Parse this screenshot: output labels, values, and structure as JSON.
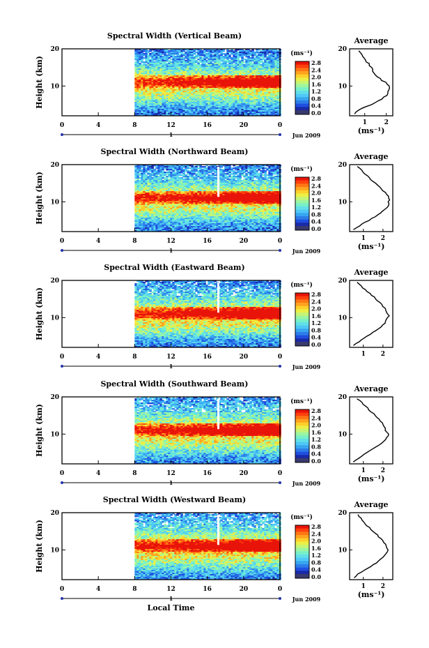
{
  "figure": {
    "x_axis_title": "Local Time",
    "date_label": "Jun 2009",
    "day_marker": "1",
    "unit_label": "(ms⁻¹)",
    "average_title": "Average"
  },
  "colorbar": {
    "ticks": [
      "2.8",
      "2.4",
      "2.0",
      "1.6",
      "1.2",
      "0.8",
      "0.4",
      "0.0"
    ],
    "colors": [
      "#3a3a6e",
      "#1a2aa8",
      "#1f4fe0",
      "#2d7de8",
      "#38a6f0",
      "#4fc8f5",
      "#62e0e8",
      "#78f0c8",
      "#9cf5a0",
      "#c6f574",
      "#ecef45",
      "#ffd02a",
      "#ffa31f",
      "#ff7615",
      "#ff400d",
      "#e81409"
    ]
  },
  "chart_data": [
    {
      "type": "heatmap",
      "title": "Spectral Width (Vertical Beam)",
      "ylabel": "Height (km)",
      "xlabel": "",
      "x_ticks": [
        "0",
        "4",
        "8",
        "12",
        "16",
        "20",
        "0"
      ],
      "y_ticks": [
        "20",
        "10"
      ],
      "xlim": [
        0,
        24
      ],
      "ylim": [
        2,
        20
      ],
      "data_start_hour": 8,
      "value_range": [
        0.0,
        2.8
      ],
      "average": {
        "title": "Average",
        "x_ticks": [
          "1",
          "2"
        ],
        "y_ticks": [
          "20",
          "10"
        ],
        "xlabel": "(ms⁻¹)",
        "xlim": [
          0.3,
          2.3
        ],
        "heights": [
          2.5,
          3,
          3.5,
          4,
          4.5,
          5,
          5.5,
          6,
          6.5,
          7,
          7.5,
          8,
          8.5,
          9,
          9.5,
          10,
          10.5,
          11,
          11.5,
          12,
          12.5,
          13,
          13.5,
          14,
          14.5,
          15,
          15.5,
          16,
          16.5,
          17,
          17.5,
          18,
          18.5,
          19,
          19.5
        ],
        "values": [
          0.5,
          0.6,
          0.75,
          0.9,
          1.1,
          1.3,
          1.5,
          1.65,
          1.8,
          1.9,
          2.0,
          2.05,
          2.1,
          2.15,
          2.15,
          2.1,
          2.05,
          1.95,
          1.8,
          1.7,
          1.6,
          1.5,
          1.45,
          1.4,
          1.35,
          1.3,
          1.25,
          1.2,
          1.1,
          1.0,
          0.95,
          0.9,
          0.85,
          0.8,
          0.7
        ]
      }
    },
    {
      "type": "heatmap",
      "title": "Spectral Width (Northward Beam)",
      "ylabel": "Height (km)",
      "xlabel": "",
      "x_ticks": [
        "0",
        "4",
        "8",
        "12",
        "16",
        "20",
        "0"
      ],
      "y_ticks": [
        "20",
        "10"
      ],
      "xlim": [
        0,
        24
      ],
      "ylim": [
        2,
        20
      ],
      "data_start_hour": 8,
      "value_range": [
        0.0,
        2.8
      ],
      "average": {
        "title": "Average",
        "x_ticks": [
          "1",
          "2"
        ],
        "y_ticks": [
          "20",
          "10"
        ],
        "xlabel": "(ms⁻¹)",
        "xlim": [
          0.3,
          2.5
        ],
        "heights": [
          2.5,
          3,
          3.5,
          4,
          4.5,
          5,
          5.5,
          6,
          6.5,
          7,
          7.5,
          8,
          8.5,
          9,
          9.5,
          10,
          10.5,
          11,
          11.5,
          12,
          12.5,
          13,
          13.5,
          14,
          14.5,
          15,
          15.5,
          16,
          16.5,
          17,
          17.5,
          18,
          18.5,
          19,
          19.5
        ],
        "values": [
          0.5,
          0.65,
          0.8,
          0.95,
          1.1,
          1.3,
          1.45,
          1.6,
          1.75,
          1.9,
          2.0,
          2.1,
          2.2,
          2.25,
          2.3,
          2.3,
          2.35,
          2.3,
          2.25,
          2.2,
          2.1,
          2.0,
          1.9,
          1.8,
          1.7,
          1.6,
          1.5,
          1.4,
          1.3,
          1.2,
          1.1,
          1.0,
          0.9,
          0.8,
          0.7
        ]
      }
    },
    {
      "type": "heatmap",
      "title": "Spectral Width (Eastward Beam)",
      "ylabel": "Height (km)",
      "xlabel": "",
      "x_ticks": [
        "0",
        "4",
        "8",
        "12",
        "16",
        "20",
        "0"
      ],
      "y_ticks": [
        "20",
        "10"
      ],
      "xlim": [
        0,
        24
      ],
      "ylim": [
        2,
        20
      ],
      "data_start_hour": 8,
      "value_range": [
        0.0,
        2.8
      ],
      "average": {
        "title": "Average",
        "x_ticks": [
          "1",
          "2"
        ],
        "y_ticks": [
          "20",
          "10"
        ],
        "xlabel": "",
        "xlim": [
          0.3,
          2.5
        ],
        "heights": [
          2.5,
          3,
          3.5,
          4,
          4.5,
          5,
          5.5,
          6,
          6.5,
          7,
          7.5,
          8,
          8.5,
          9,
          9.5,
          10,
          10.5,
          11,
          11.5,
          12,
          12.5,
          13,
          13.5,
          14,
          14.5,
          15,
          15.5,
          16,
          16.5,
          17,
          17.5,
          18,
          18.5,
          19,
          19.5
        ],
        "values": [
          0.5,
          0.6,
          0.75,
          0.9,
          1.05,
          1.2,
          1.35,
          1.5,
          1.65,
          1.8,
          1.9,
          2.0,
          2.1,
          2.15,
          2.2,
          2.25,
          2.3,
          2.25,
          2.2,
          2.15,
          2.1,
          2.0,
          1.95,
          1.85,
          1.75,
          1.65,
          1.55,
          1.45,
          1.35,
          1.2,
          1.1,
          1.0,
          0.9,
          0.8,
          0.7
        ]
      }
    },
    {
      "type": "heatmap",
      "title": "Spectral Width (Southward Beam)",
      "ylabel": "Height (km)",
      "xlabel": "",
      "x_ticks": [
        "0",
        "4",
        "8",
        "12",
        "16",
        "20",
        "0"
      ],
      "y_ticks": [
        "20",
        "10"
      ],
      "xlim": [
        0,
        24
      ],
      "ylim": [
        2,
        20
      ],
      "data_start_hour": 8,
      "value_range": [
        0.0,
        2.8
      ],
      "average": {
        "title": "Average",
        "x_ticks": [
          "1",
          "2"
        ],
        "y_ticks": [
          "20",
          "10"
        ],
        "xlabel": "(ms⁻¹)",
        "xlim": [
          0.3,
          2.5
        ],
        "heights": [
          2.5,
          3,
          3.5,
          4,
          4.5,
          5,
          5.5,
          6,
          6.5,
          7,
          7.5,
          8,
          8.5,
          9,
          9.5,
          10,
          10.5,
          11,
          11.5,
          12,
          12.5,
          13,
          13.5,
          14,
          14.5,
          15,
          15.5,
          16,
          16.5,
          17,
          17.5,
          18,
          18.5,
          19,
          19.5
        ],
        "values": [
          0.5,
          0.6,
          0.75,
          0.9,
          1.05,
          1.2,
          1.35,
          1.5,
          1.65,
          1.8,
          1.95,
          2.05,
          2.15,
          2.2,
          2.25,
          2.25,
          2.2,
          2.15,
          2.1,
          2.05,
          2.0,
          1.95,
          1.9,
          1.8,
          1.7,
          1.6,
          1.5,
          1.4,
          1.3,
          1.2,
          1.1,
          1.0,
          0.9,
          0.8,
          0.7
        ]
      }
    },
    {
      "type": "heatmap",
      "title": "Spectral Width (Westward Beam)",
      "ylabel": "Height (km)",
      "xlabel": "Local Time",
      "x_ticks": [
        "0",
        "4",
        "8",
        "12",
        "16",
        "20",
        "0"
      ],
      "y_ticks": [
        "20",
        "10"
      ],
      "xlim": [
        0,
        24
      ],
      "ylim": [
        2,
        20
      ],
      "data_start_hour": 8,
      "value_range": [
        0.0,
        2.8
      ],
      "average": {
        "title": "Average",
        "x_ticks": [
          "1",
          "2"
        ],
        "y_ticks": [
          "20",
          "10"
        ],
        "xlabel": "(ms⁻¹)",
        "xlim": [
          0.3,
          2.5
        ],
        "heights": [
          2.5,
          3,
          3.5,
          4,
          4.5,
          5,
          5.5,
          6,
          6.5,
          7,
          7.5,
          8,
          8.5,
          9,
          9.5,
          10,
          10.5,
          11,
          11.5,
          12,
          12.5,
          13,
          13.5,
          14,
          14.5,
          15,
          15.5,
          16,
          16.5,
          17,
          17.5,
          18,
          18.5,
          19,
          19.5
        ],
        "values": [
          0.5,
          0.6,
          0.75,
          0.9,
          1.05,
          1.2,
          1.35,
          1.5,
          1.65,
          1.8,
          1.9,
          2.0,
          2.1,
          2.15,
          2.2,
          2.25,
          2.2,
          2.15,
          2.1,
          2.05,
          2.0,
          1.9,
          1.8,
          1.7,
          1.6,
          1.5,
          1.4,
          1.3,
          1.2,
          1.1,
          1.0,
          0.95,
          0.9,
          0.8,
          0.7
        ]
      }
    }
  ]
}
